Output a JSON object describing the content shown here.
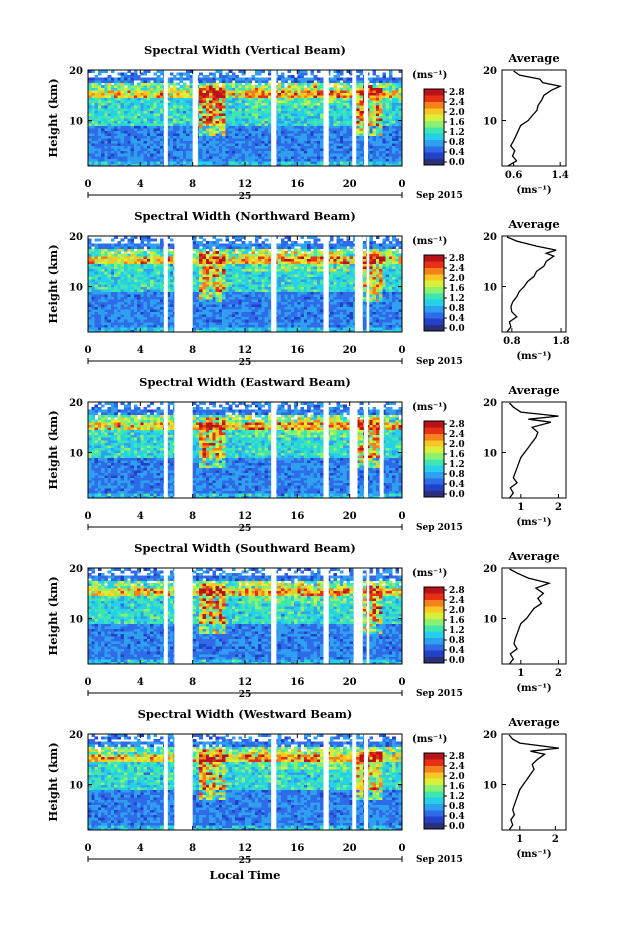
{
  "figure": {
    "bottom_label": "Local Time",
    "date_suffix": "Sep 2015",
    "unit_label": "(ms⁻¹)",
    "colorbar_ticks": [
      "2.8",
      "2.4",
      "2.0",
      "1.6",
      "1.2",
      "0.8",
      "0.4",
      "0.0"
    ],
    "avg_title": "Average",
    "height_label": "Height (km)",
    "colormap": [
      "#2b2f7a",
      "#2340c8",
      "#2f6be8",
      "#2fa0f0",
      "#26d0e8",
      "#3fe6b0",
      "#8cf070",
      "#d8f03a",
      "#f7c822",
      "#f5801c",
      "#e83018",
      "#b8121a"
    ]
  },
  "chart_data": [
    {
      "type": "heatmap",
      "title": "Spectral Width (Vertical Beam)",
      "x_ticks": [
        "0",
        "4",
        "8",
        "12",
        "16",
        "20",
        "0"
      ],
      "day_label": "25",
      "y_ticks": [
        "20",
        "10"
      ],
      "ylim": [
        1,
        20
      ],
      "color_range": [
        0.0,
        3.0
      ],
      "gaps_hours": [
        [
          5.8,
          6.1
        ],
        [
          8.0,
          8.4
        ],
        [
          14.0,
          14.4
        ],
        [
          18.0,
          18.4
        ],
        [
          20.2,
          20.5
        ],
        [
          21.1,
          21.4
        ]
      ],
      "avg": {
        "title": "Average",
        "x_ticks": [
          "0.6",
          "1.4"
        ],
        "xlim": [
          0.4,
          1.5
        ],
        "profile": [
          [
            0.5,
            1
          ],
          [
            0.65,
            2
          ],
          [
            0.58,
            3
          ],
          [
            0.62,
            4
          ],
          [
            0.55,
            5
          ],
          [
            0.6,
            6
          ],
          [
            0.64,
            7
          ],
          [
            0.68,
            8
          ],
          [
            0.72,
            9
          ],
          [
            0.85,
            10
          ],
          [
            0.92,
            11
          ],
          [
            1.0,
            12
          ],
          [
            1.02,
            13
          ],
          [
            1.08,
            14
          ],
          [
            1.12,
            15
          ],
          [
            1.25,
            16
          ],
          [
            1.4,
            16.8
          ],
          [
            1.1,
            17.5
          ],
          [
            1.05,
            18.2
          ],
          [
            0.7,
            19
          ],
          [
            0.6,
            19.8
          ]
        ]
      }
    },
    {
      "type": "heatmap",
      "title": "Spectral Width (Northward Beam)",
      "x_ticks": [
        "0",
        "4",
        "8",
        "12",
        "16",
        "20",
        "0"
      ],
      "day_label": "25",
      "y_ticks": [
        "20",
        "10"
      ],
      "ylim": [
        1,
        20
      ],
      "color_range": [
        0.0,
        3.0
      ],
      "gaps_hours": [
        [
          5.8,
          6.1
        ],
        [
          6.6,
          8.0
        ],
        [
          14.0,
          14.4
        ],
        [
          18.0,
          18.4
        ],
        [
          20.4,
          21.0
        ],
        [
          21.3,
          21.5
        ]
      ],
      "avg": {
        "title": "Average",
        "x_ticks": [
          "0.8",
          "1.8"
        ],
        "xlim": [
          0.6,
          1.9
        ],
        "profile": [
          [
            0.7,
            1
          ],
          [
            0.78,
            2
          ],
          [
            0.75,
            3
          ],
          [
            0.9,
            4
          ],
          [
            0.8,
            5
          ],
          [
            0.78,
            6
          ],
          [
            0.82,
            7
          ],
          [
            0.9,
            8
          ],
          [
            0.95,
            9
          ],
          [
            1.05,
            10
          ],
          [
            1.12,
            11
          ],
          [
            1.25,
            12
          ],
          [
            1.3,
            13
          ],
          [
            1.45,
            14
          ],
          [
            1.5,
            15
          ],
          [
            1.65,
            16
          ],
          [
            1.5,
            16.6
          ],
          [
            1.7,
            17.2
          ],
          [
            1.3,
            18
          ],
          [
            0.9,
            19
          ],
          [
            0.7,
            19.8
          ]
        ]
      }
    },
    {
      "type": "heatmap",
      "title": "Spectral Width (Eastward Beam)",
      "x_ticks": [
        "0",
        "4",
        "8",
        "12",
        "16",
        "20",
        "0"
      ],
      "day_label": "25",
      "y_ticks": [
        "20",
        "10"
      ],
      "ylim": [
        1,
        20
      ],
      "color_range": [
        0.0,
        3.0
      ],
      "gaps_hours": [
        [
          5.8,
          6.1
        ],
        [
          6.6,
          8.0
        ],
        [
          14.0,
          14.4
        ],
        [
          18.0,
          18.4
        ],
        [
          20.0,
          20.6
        ],
        [
          21.1,
          21.4
        ],
        [
          22.3,
          22.6
        ]
      ],
      "avg": {
        "title": "Average",
        "x_ticks": [
          "1",
          "2"
        ],
        "xlim": [
          0.5,
          2.2
        ],
        "profile": [
          [
            0.7,
            1
          ],
          [
            0.8,
            2
          ],
          [
            0.72,
            3
          ],
          [
            0.9,
            4
          ],
          [
            0.8,
            5
          ],
          [
            0.85,
            6
          ],
          [
            0.9,
            7
          ],
          [
            0.95,
            8
          ],
          [
            1.0,
            9
          ],
          [
            1.1,
            10
          ],
          [
            1.2,
            11
          ],
          [
            1.3,
            12
          ],
          [
            1.4,
            13
          ],
          [
            1.45,
            14
          ],
          [
            1.3,
            15
          ],
          [
            1.8,
            16
          ],
          [
            1.2,
            16.6
          ],
          [
            2.0,
            17.2
          ],
          [
            1.0,
            18
          ],
          [
            0.8,
            19
          ],
          [
            0.7,
            19.8
          ]
        ]
      }
    },
    {
      "type": "heatmap",
      "title": "Spectral Width (Southward Beam)",
      "x_ticks": [
        "0",
        "4",
        "8",
        "12",
        "16",
        "20",
        "0"
      ],
      "day_label": "25",
      "y_ticks": [
        "20",
        "10"
      ],
      "ylim": [
        1,
        20
      ],
      "color_range": [
        0.0,
        3.0
      ],
      "gaps_hours": [
        [
          5.8,
          6.1
        ],
        [
          6.6,
          8.0
        ],
        [
          14.0,
          14.4
        ],
        [
          18.0,
          18.4
        ],
        [
          20.3,
          21.0
        ],
        [
          21.3,
          21.5
        ]
      ],
      "avg": {
        "title": "Average",
        "x_ticks": [
          "1",
          "2"
        ],
        "xlim": [
          0.5,
          2.2
        ],
        "profile": [
          [
            0.7,
            1
          ],
          [
            0.8,
            2
          ],
          [
            0.72,
            3
          ],
          [
            0.9,
            4
          ],
          [
            0.82,
            5
          ],
          [
            0.85,
            6
          ],
          [
            0.9,
            7
          ],
          [
            0.95,
            8
          ],
          [
            1.0,
            9
          ],
          [
            1.15,
            10
          ],
          [
            1.25,
            11
          ],
          [
            1.35,
            12
          ],
          [
            1.55,
            13
          ],
          [
            1.45,
            14
          ],
          [
            1.6,
            15
          ],
          [
            1.4,
            16
          ],
          [
            1.75,
            17
          ],
          [
            1.2,
            18
          ],
          [
            0.9,
            19
          ],
          [
            0.7,
            19.8
          ]
        ]
      }
    },
    {
      "type": "heatmap",
      "title": "Spectral Width (Westward Beam)",
      "x_ticks": [
        "0",
        "4",
        "8",
        "12",
        "16",
        "20",
        "0"
      ],
      "day_label": "25",
      "y_ticks": [
        "20",
        "10"
      ],
      "ylim": [
        1,
        20
      ],
      "color_range": [
        0.0,
        3.0
      ],
      "gaps_hours": [
        [
          5.8,
          6.1
        ],
        [
          6.6,
          8.0
        ],
        [
          14.0,
          14.4
        ],
        [
          18.0,
          18.4
        ],
        [
          20.2,
          20.5
        ],
        [
          21.1,
          21.4
        ]
      ],
      "avg": {
        "title": "Average",
        "x_ticks": [
          "1",
          "2"
        ],
        "xlim": [
          0.5,
          2.3
        ],
        "profile": [
          [
            0.7,
            1
          ],
          [
            0.8,
            2
          ],
          [
            0.75,
            3
          ],
          [
            0.85,
            4
          ],
          [
            0.8,
            5
          ],
          [
            0.85,
            6
          ],
          [
            0.9,
            7
          ],
          [
            0.95,
            8
          ],
          [
            1.0,
            9
          ],
          [
            1.1,
            10
          ],
          [
            1.2,
            11
          ],
          [
            1.3,
            12
          ],
          [
            1.4,
            13
          ],
          [
            1.35,
            14
          ],
          [
            1.5,
            15
          ],
          [
            1.7,
            16
          ],
          [
            1.3,
            16.6
          ],
          [
            2.1,
            17.2
          ],
          [
            1.0,
            18.2
          ],
          [
            0.8,
            19
          ],
          [
            0.7,
            19.8
          ]
        ]
      }
    }
  ]
}
